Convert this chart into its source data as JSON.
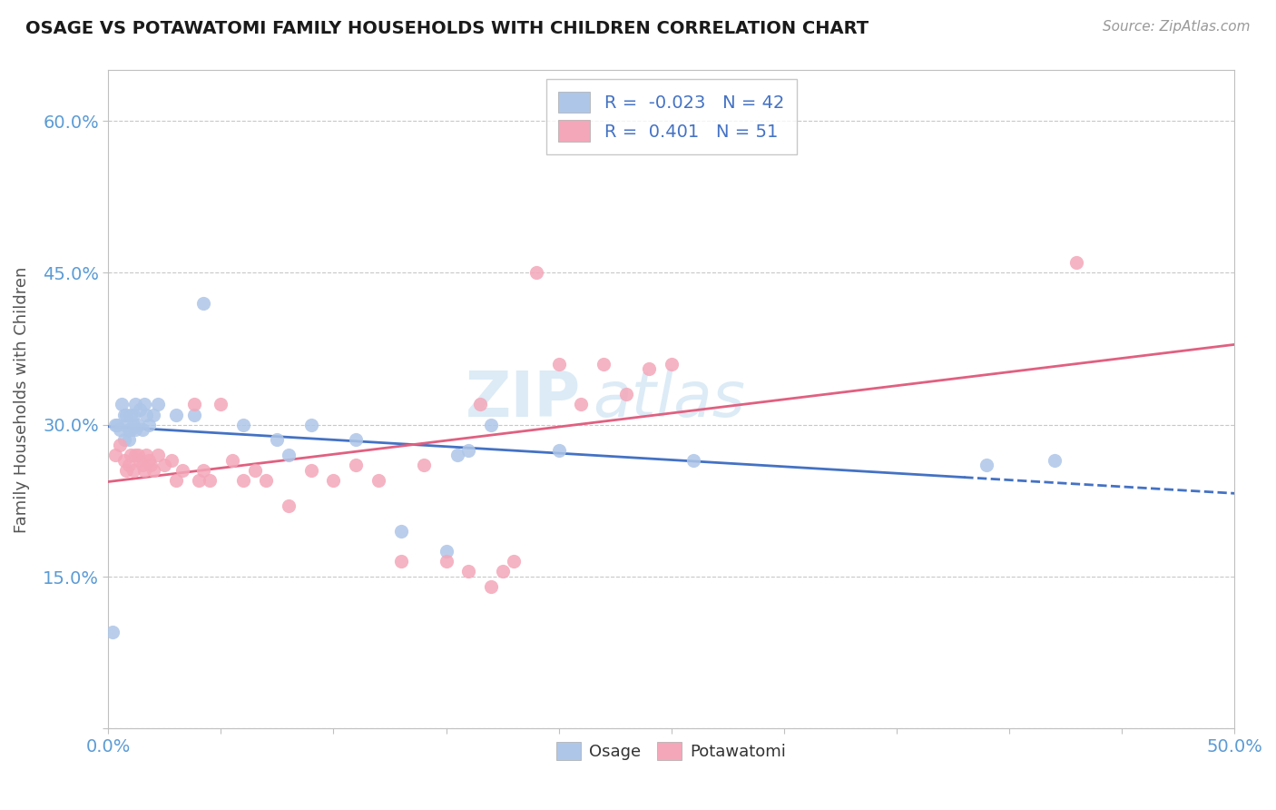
{
  "title": "OSAGE VS POTAWATOMI FAMILY HOUSEHOLDS WITH CHILDREN CORRELATION CHART",
  "source": "Source: ZipAtlas.com",
  "ylabel": "Family Households with Children",
  "xlim": [
    0,
    0.5
  ],
  "ylim": [
    0,
    0.65
  ],
  "xticks": [
    0.0,
    0.05,
    0.1,
    0.15,
    0.2,
    0.25,
    0.3,
    0.35,
    0.4,
    0.45,
    0.5
  ],
  "yticks": [
    0.0,
    0.15,
    0.3,
    0.45,
    0.6
  ],
  "ytick_labels": [
    "",
    "15.0%",
    "30.0%",
    "45.0%",
    "60.0%"
  ],
  "xtick_labels": [
    "0.0%",
    "",
    "",
    "",
    "",
    "",
    "",
    "",
    "",
    "",
    "50.0%"
  ],
  "watermark": "ZIPatlas",
  "osage_R": -0.023,
  "osage_N": 42,
  "potawatomi_R": 0.401,
  "potawatomi_N": 51,
  "osage_color": "#aec6e8",
  "potawatomi_color": "#f4a7b9",
  "osage_line_color": "#4472c4",
  "potawatomi_line_color": "#e06080",
  "background_color": "#ffffff",
  "grid_color": "#c8c8c8",
  "title_color": "#1a1a1a",
  "axis_label_color": "#5b9bd5",
  "osage_x": [
    0.002,
    0.003,
    0.004,
    0.005,
    0.006,
    0.007,
    0.007,
    0.008,
    0.008,
    0.009,
    0.009,
    0.01,
    0.01,
    0.011,
    0.011,
    0.012,
    0.012,
    0.013,
    0.014,
    0.015,
    0.016,
    0.017,
    0.018,
    0.02,
    0.022,
    0.03,
    0.038,
    0.042,
    0.06,
    0.075,
    0.08,
    0.09,
    0.11,
    0.13,
    0.15,
    0.155,
    0.16,
    0.17,
    0.2,
    0.26,
    0.39,
    0.42
  ],
  "osage_y": [
    0.095,
    0.3,
    0.3,
    0.295,
    0.32,
    0.285,
    0.31,
    0.3,
    0.31,
    0.285,
    0.295,
    0.295,
    0.31,
    0.3,
    0.31,
    0.295,
    0.32,
    0.3,
    0.315,
    0.295,
    0.32,
    0.31,
    0.3,
    0.31,
    0.32,
    0.31,
    0.31,
    0.42,
    0.3,
    0.285,
    0.27,
    0.3,
    0.285,
    0.195,
    0.175,
    0.27,
    0.275,
    0.3,
    0.275,
    0.265,
    0.26,
    0.265
  ],
  "potawatomi_x": [
    0.003,
    0.005,
    0.007,
    0.008,
    0.009,
    0.01,
    0.011,
    0.012,
    0.013,
    0.014,
    0.015,
    0.016,
    0.017,
    0.018,
    0.019,
    0.02,
    0.022,
    0.025,
    0.028,
    0.03,
    0.033,
    0.038,
    0.04,
    0.042,
    0.045,
    0.05,
    0.055,
    0.06,
    0.065,
    0.07,
    0.08,
    0.09,
    0.1,
    0.11,
    0.12,
    0.13,
    0.14,
    0.15,
    0.16,
    0.165,
    0.17,
    0.175,
    0.18,
    0.19,
    0.2,
    0.21,
    0.22,
    0.23,
    0.24,
    0.25,
    0.43
  ],
  "potawatomi_y": [
    0.27,
    0.28,
    0.265,
    0.255,
    0.26,
    0.27,
    0.255,
    0.27,
    0.27,
    0.265,
    0.26,
    0.255,
    0.27,
    0.265,
    0.26,
    0.255,
    0.27,
    0.26,
    0.265,
    0.245,
    0.255,
    0.32,
    0.245,
    0.255,
    0.245,
    0.32,
    0.265,
    0.245,
    0.255,
    0.245,
    0.22,
    0.255,
    0.245,
    0.26,
    0.245,
    0.165,
    0.26,
    0.165,
    0.155,
    0.32,
    0.14,
    0.155,
    0.165,
    0.45,
    0.36,
    0.32,
    0.36,
    0.33,
    0.355,
    0.36,
    0.46
  ]
}
